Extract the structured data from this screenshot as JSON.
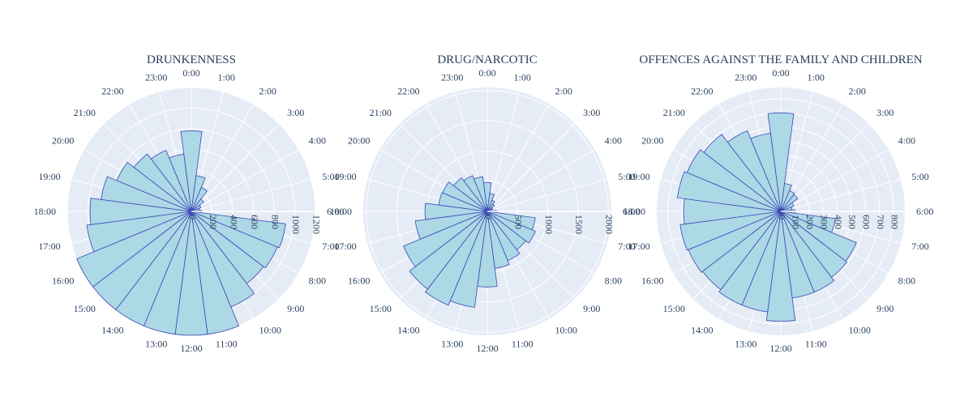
{
  "chart_data": [
    {
      "type": "barpolar",
      "title": "DRUNKENNESS",
      "angular_labels": [
        "0:00",
        "1:00",
        "2:00",
        "3:00",
        "4:00",
        "5:00",
        "6:00",
        "7:00",
        "8:00",
        "9:00",
        "10:00",
        "11:00",
        "12:00",
        "13:00",
        "14:00",
        "15:00",
        "16:00",
        "17:00",
        "18:00",
        "19:00",
        "20:00",
        "21:00",
        "22:00",
        "23:00"
      ],
      "radial_ticks": [
        "0",
        "200",
        "400",
        "600",
        "800",
        "1000",
        "1200"
      ],
      "radial_tick_values": [
        0,
        200,
        400,
        600,
        800,
        1000,
        1200
      ],
      "radial_range": [
        0,
        1200
      ],
      "values": [
        780,
        350,
        250,
        150,
        100,
        80,
        100,
        920,
        900,
        880,
        1000,
        1250,
        1260,
        1300,
        1290,
        1250,
        1200,
        1020,
        980,
        880,
        780,
        700,
        640,
        560
      ]
    },
    {
      "type": "barpolar",
      "title": "DRUG/NARCOTIC",
      "angular_labels": [
        "0:00",
        "1:00",
        "2:00",
        "3:00",
        "4:00",
        "5:00",
        "6:00",
        "7:00",
        "8:00",
        "9:00",
        "10:00",
        "11:00",
        "12:00",
        "13:00",
        "14:00",
        "15:00",
        "16:00",
        "17:00",
        "18:00",
        "19:00",
        "20:00",
        "21:00",
        "22:00",
        "23:00"
      ],
      "radial_ticks": [
        "0",
        "500",
        "1000",
        "1500",
        "2000"
      ],
      "radial_tick_values": [
        0,
        500,
        1000,
        1500,
        2000
      ],
      "radial_range": [
        0,
        2050
      ],
      "values": [
        480,
        300,
        200,
        150,
        100,
        80,
        150,
        800,
        860,
        800,
        880,
        950,
        1250,
        1600,
        1680,
        1620,
        1500,
        1200,
        1030,
        810,
        800,
        700,
        640,
        580
      ]
    },
    {
      "type": "barpolar",
      "title": "OFFENCES AGAINST THE FAMILY AND CHILDREN",
      "angular_labels": [
        "0:00",
        "1:00",
        "2:00",
        "3:00",
        "4:00",
        "5:00",
        "6:00",
        "7:00",
        "8:00",
        "9:00",
        "10:00",
        "11:00",
        "12:00",
        "13:00",
        "14:00",
        "15:00",
        "16:00",
        "17:00",
        "18:00",
        "19:00",
        "20:00",
        "21:00",
        "22:00",
        "23:00"
      ],
      "radial_ticks": [
        "0",
        "100",
        "200",
        "300",
        "400",
        "500",
        "600",
        "700",
        "800"
      ],
      "radial_tick_values": [
        0,
        100,
        200,
        300,
        400,
        500,
        600,
        700,
        800
      ],
      "radial_range": [
        0,
        880
      ],
      "values": [
        700,
        200,
        160,
        150,
        100,
        80,
        100,
        390,
        580,
        590,
        620,
        620,
        780,
        720,
        720,
        700,
        710,
        720,
        690,
        740,
        720,
        690,
        620,
        560
      ]
    }
  ],
  "colors": {
    "bar_fill": "#add8e6",
    "bar_stroke": "#3a48b5",
    "polar_bg": "#e5ecf6",
    "grid": "#ffffff",
    "text": "#2a3f5f"
  }
}
